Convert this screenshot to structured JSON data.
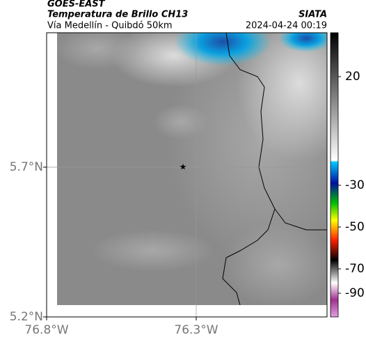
{
  "header": {
    "satellite": "GOES-EAST",
    "product": "Temperatura de Brillo CH13",
    "region": "Vía Medellín - Quibdó 50km",
    "source": "SIATA",
    "datetime": "2024-04-24 00:19"
  },
  "map": {
    "lat_labels": [
      "5.7°N",
      "5.2°N"
    ],
    "lon_labels": [
      "76.8°W",
      "76.3°W"
    ]
  },
  "colorbar": {
    "tick_labels": [
      "20",
      "-30",
      "-50",
      "-70",
      "-90"
    ]
  }
}
